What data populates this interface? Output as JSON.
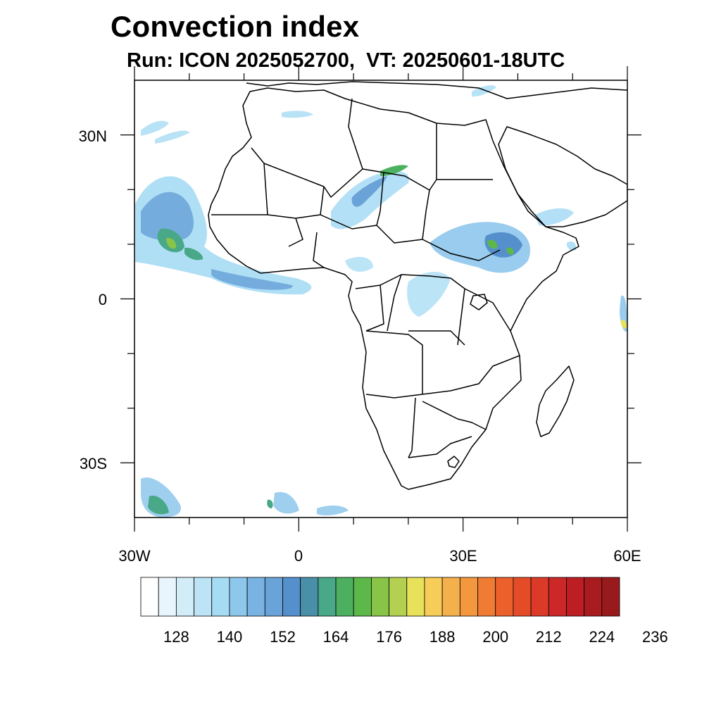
{
  "title": "Convection index",
  "subtitle": "Run: ICON 2025052700,  VT: 20250601-18UTC",
  "axes": {
    "lat_labels": [
      "30N",
      "0",
      "30S"
    ],
    "lon_labels": [
      "30W",
      "0",
      "30E",
      "60E"
    ],
    "lat_range": [
      -40,
      40
    ],
    "lon_range": [
      -30,
      60
    ]
  },
  "colorbar": {
    "labels": [
      "128",
      "140",
      "152",
      "164",
      "176",
      "188",
      "200",
      "212",
      "224",
      "236"
    ],
    "colors": [
      "#ffffff",
      "#e8f5fc",
      "#d2ecf8",
      "#bce3f6",
      "#a6dbf4",
      "#8ec7ec",
      "#78b3e4",
      "#6aa3d8",
      "#5590cc",
      "#4a8fa8",
      "#48a888",
      "#4cb060",
      "#5cb848",
      "#88c448",
      "#b4d050",
      "#e8e25a",
      "#f8cc58",
      "#f4b04c",
      "#f49840",
      "#f07c34",
      "#ec602c",
      "#e44c28",
      "#dc3a28",
      "#cc2828",
      "#bc1e24",
      "#a81c20",
      "#981a1c"
    ]
  }
}
